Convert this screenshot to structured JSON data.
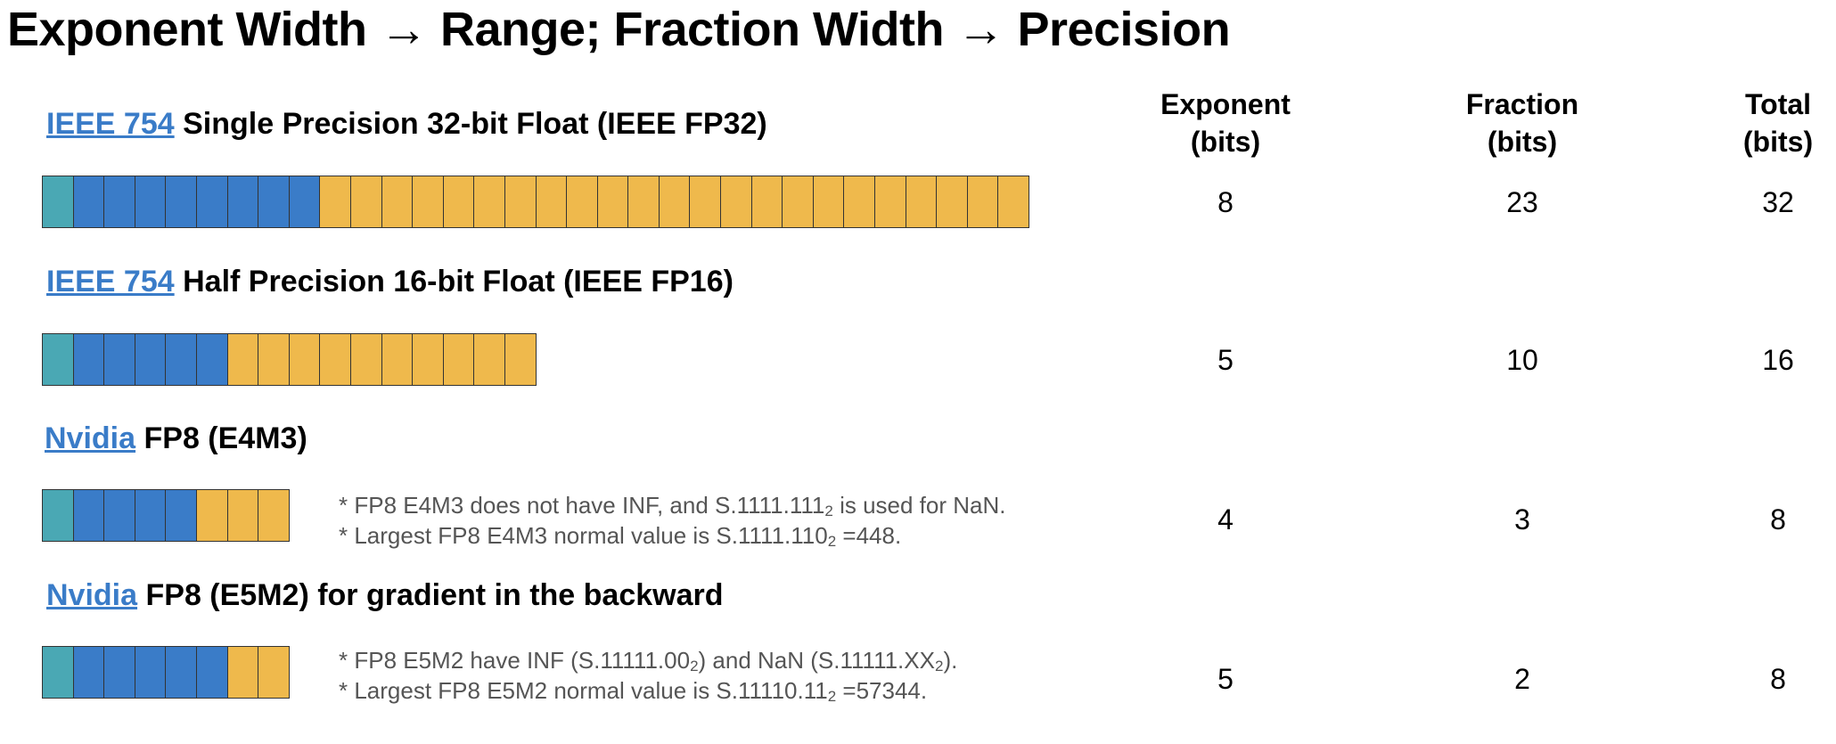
{
  "title": "Exponent Width → Range; Fraction Width → Precision",
  "colors": {
    "sign": "#4aa8b4",
    "exponent": "#3a7cc8",
    "fraction": "#efb94c",
    "link": "#3a7cc8"
  },
  "columns": {
    "exponent": {
      "line1": "Exponent",
      "line2": "(bits)"
    },
    "fraction": {
      "line1": "Fraction",
      "line2": "(bits)"
    },
    "total": {
      "line1": "Total",
      "line2": "(bits)"
    }
  },
  "formats": [
    {
      "link": "IEEE 754",
      "name": "Single Precision 32-bit Float (IEEE FP32)",
      "sign_bits": 1,
      "exponent_bits": "8",
      "fraction_bits": "23",
      "total_bits": "32"
    },
    {
      "link": "IEEE 754",
      "name": "Half Precision 16-bit Float (IEEE FP16)",
      "sign_bits": 1,
      "exponent_bits": "5",
      "fraction_bits": "10",
      "total_bits": "16"
    },
    {
      "link": "Nvidia",
      "name": "FP8 (E4M3)",
      "sign_bits": 1,
      "exponent_bits": "4",
      "fraction_bits": "3",
      "total_bits": "8",
      "notes": [
        {
          "pre": "* FP8 E4M3 does not have INF, and S.1111.111",
          "sub": "2",
          "post": " is used for NaN.",
          "sub2": "",
          "post2": ""
        },
        {
          "pre": "* Largest FP8 E4M3 normal value is S.1111.110",
          "sub": "2",
          "post": " =448.",
          "sub2": "",
          "post2": ""
        }
      ]
    },
    {
      "link": "Nvidia",
      "name": "FP8 (E5M2) for gradient in the backward",
      "sign_bits": 1,
      "exponent_bits": "5",
      "fraction_bits": "2",
      "total_bits": "8",
      "notes": [
        {
          "pre": "* FP8 E5M2 have INF (S.11111.00",
          "sub": "2",
          "post": ") and NaN (S.11111.XX",
          "sub2": "2",
          "post2": ")."
        },
        {
          "pre": "* Largest FP8 E5M2 normal value is S.11110.11",
          "sub": "2",
          "post": " =57344.",
          "sub2": "",
          "post2": ""
        }
      ]
    }
  ]
}
